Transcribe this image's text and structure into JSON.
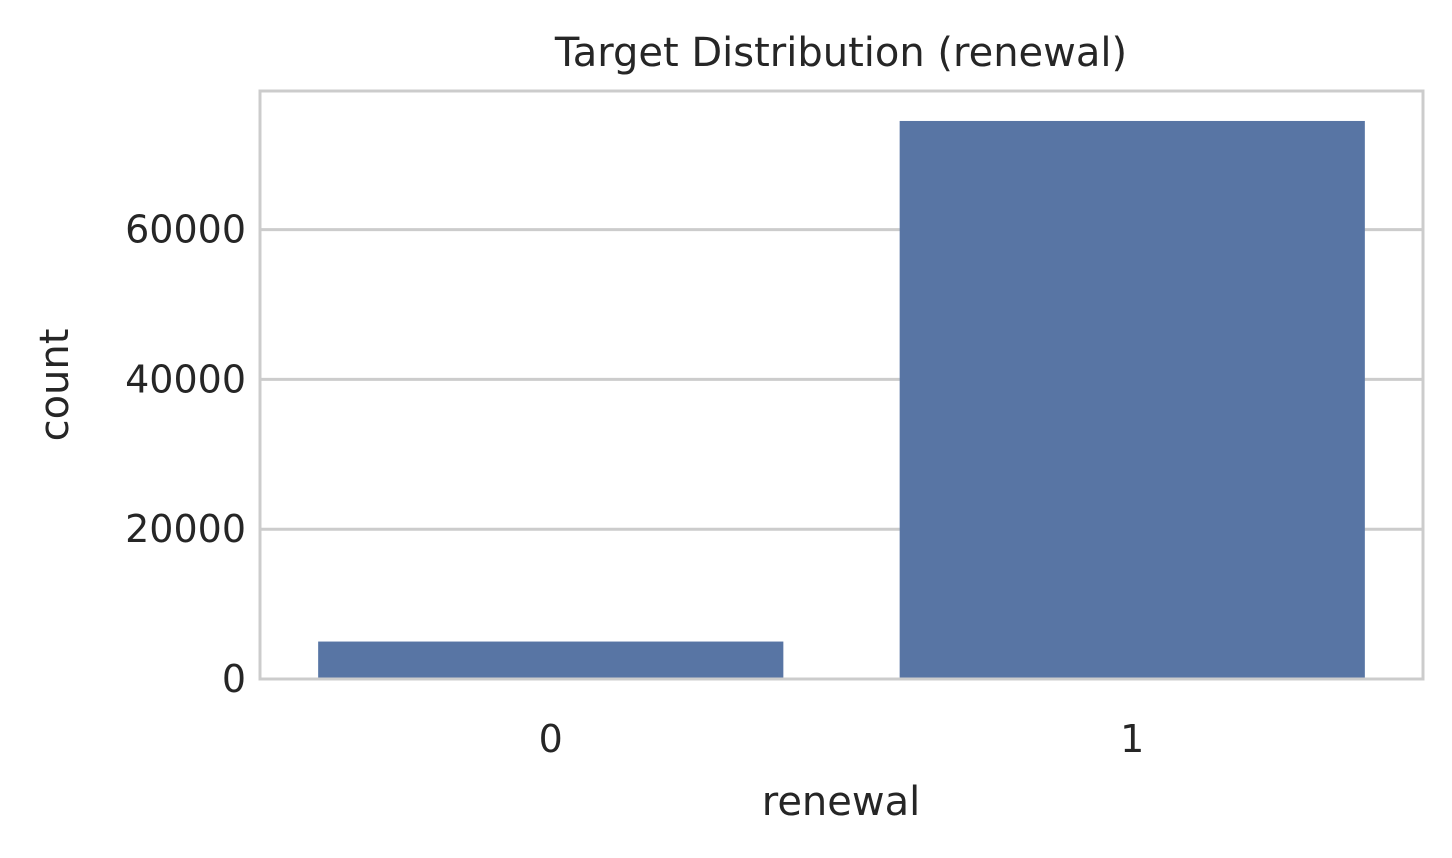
{
  "chart_data": {
    "type": "bar",
    "title": "Target Distribution (renewal)",
    "xlabel": "renewal",
    "ylabel": "count",
    "categories": [
      "0",
      "1"
    ],
    "values": [
      5000,
      74500
    ],
    "ylim": [
      0,
      78500
    ],
    "yticks": [
      0,
      20000,
      40000,
      60000
    ],
    "ytick_labels": [
      "0",
      "20000",
      "40000",
      "60000"
    ],
    "grid": "y",
    "bar_color": "#5875a4",
    "grid_color": "#cccccc",
    "spine_color": "#cccccc"
  }
}
